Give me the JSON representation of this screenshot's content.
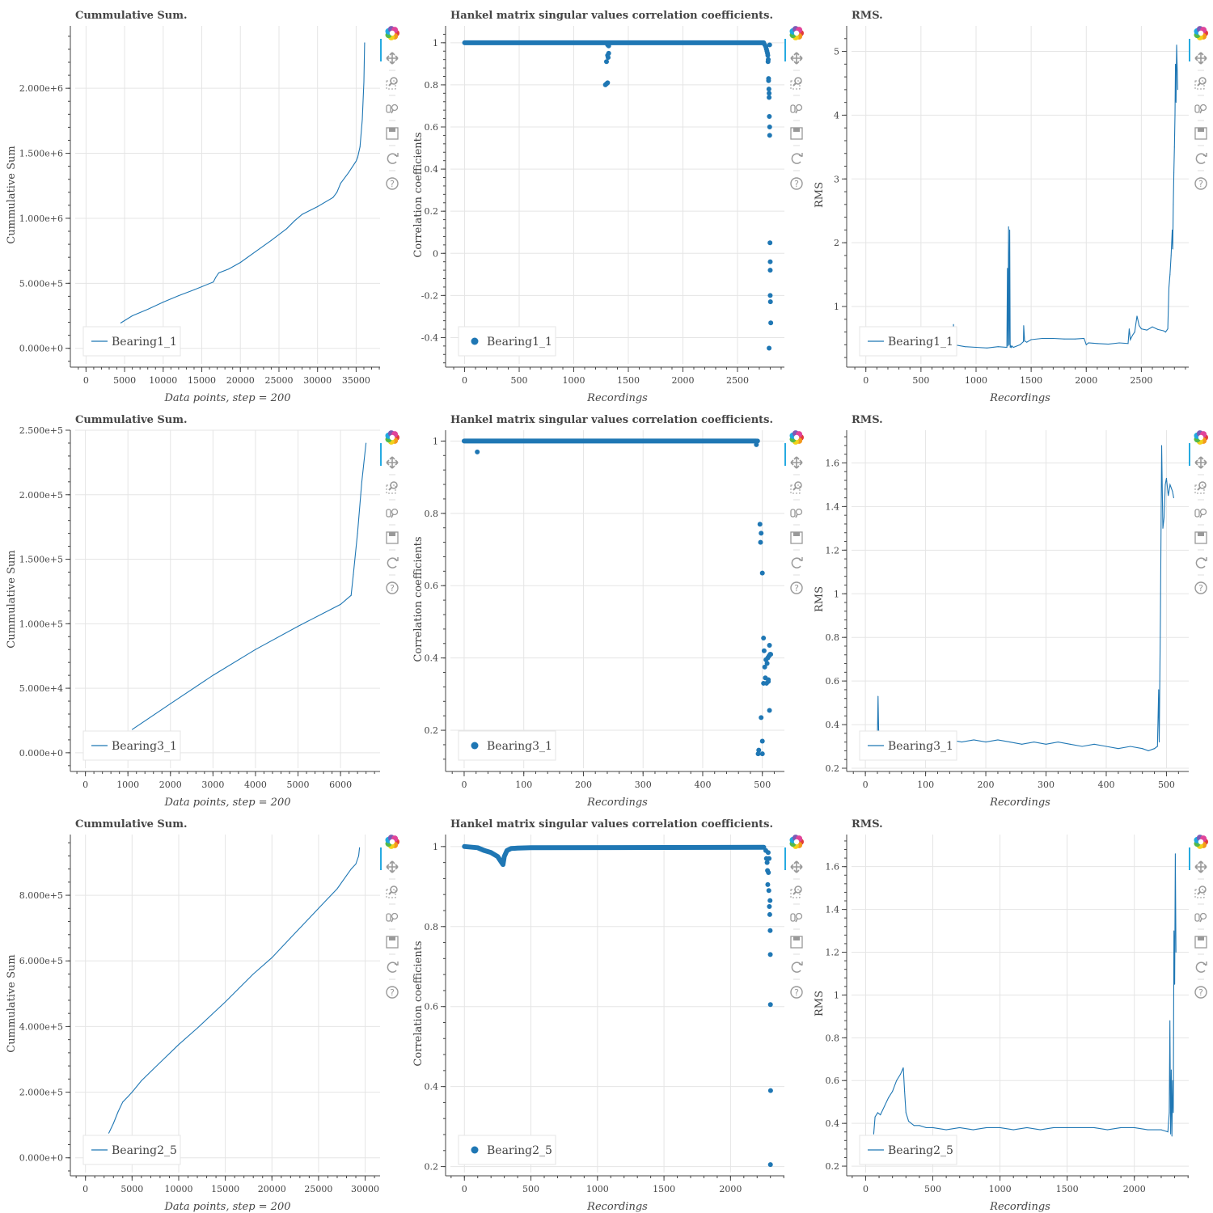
{
  "colors": {
    "line": "#1f77b4",
    "grid": "#e5e5e5",
    "axis": "#444444",
    "title": "#444444"
  },
  "toolbar": {
    "tools": [
      {
        "name": "bokeh-logo",
        "icon": "bokeh-logo-icon"
      },
      {
        "name": "pan-tool",
        "icon": "pan-icon"
      },
      {
        "name": "box-zoom-tool",
        "icon": "box-zoom-icon"
      },
      {
        "name": "wheel-zoom-tool",
        "icon": "wheel-zoom-icon"
      },
      {
        "name": "save-tool",
        "icon": "save-icon"
      },
      {
        "name": "reset-tool",
        "icon": "reset-icon"
      },
      {
        "name": "help-tool",
        "icon": "help-icon"
      }
    ]
  },
  "chart_data": [
    {
      "id": "b11-cumsum",
      "type": "line",
      "title": "Cummulative Sum.",
      "xlabel": "Data points, step = 200",
      "ylabel": "Cummulative Sum",
      "legend": "Bearing1_1",
      "xlim": [
        -1400,
        38100
      ],
      "ylim": [
        -120000,
        2480000
      ],
      "xticks": [
        0,
        5000,
        10000,
        15000,
        20000,
        25000,
        30000,
        35000
      ],
      "yticks": [
        0,
        500000,
        1000000,
        1500000,
        2000000
      ],
      "yticklabels": [
        "0.000e+0",
        "5.000e+5",
        "1.000e+6",
        "1.500e+6",
        "2.000e+6"
      ],
      "x": [
        4500,
        6000,
        8000,
        10000,
        12000,
        14000,
        16500,
        16800,
        17200,
        18500,
        20000,
        22000,
        24000,
        26000,
        27000,
        28000,
        30000,
        32000,
        32500,
        33000,
        34000,
        35000,
        35200,
        35500,
        35800,
        36000,
        36100
      ],
      "y": [
        195000,
        250000,
        300000,
        355000,
        405000,
        450000,
        510000,
        545000,
        580000,
        610000,
        660000,
        745000,
        830000,
        920000,
        980000,
        1030000,
        1090000,
        1160000,
        1200000,
        1270000,
        1350000,
        1440000,
        1470000,
        1550000,
        1760000,
        2050000,
        2350000
      ]
    },
    {
      "id": "b11-corr",
      "type": "scatter",
      "title": "Hankel matrix singular values correlation coefficients.",
      "xlabel": "Recordings",
      "ylabel": "Correlation coefficients",
      "legend": "Bearing1_1",
      "xlim": [
        -130,
        2930
      ],
      "ylim": [
        -0.525,
        1.08
      ],
      "xticks": [
        0,
        500,
        1000,
        1500,
        2000,
        2500
      ],
      "yticks": [
        -0.4,
        -0.2,
        0,
        0.2,
        0.4,
        0.6,
        0.8,
        1
      ],
      "yticklabels": [
        "-0.4",
        "-0.2",
        "0",
        "0.2",
        "0.4",
        "0.6",
        "0.8",
        "1"
      ],
      "band": {
        "from": 0,
        "to": 2740,
        "value": 1.0
      },
      "x": [
        1290,
        1300,
        1310,
        1315,
        1320,
        1300,
        1310,
        1320,
        1310,
        2750,
        2760,
        2765,
        2770,
        2775,
        2778,
        2780,
        2782,
        2785,
        2785,
        2788,
        2790,
        2790,
        2792,
        2795,
        2795,
        2798,
        2800,
        2800,
        2800,
        2802,
        2805,
        2790,
        2795
      ],
      "y": [
        0.8,
        0.805,
        0.81,
        0.93,
        0.95,
        0.91,
        0.94,
        0.985,
        0.99,
        0.99,
        0.98,
        0.97,
        0.96,
        0.95,
        0.94,
        0.91,
        0.92,
        0.83,
        0.82,
        0.78,
        0.76,
        0.74,
        0.65,
        0.6,
        0.56,
        0.05,
        -0.04,
        -0.08,
        -0.2,
        -0.23,
        -0.33,
        -0.45,
        0.99
      ]
    },
    {
      "id": "b11-rms",
      "type": "line",
      "title": "RMS.",
      "xlabel": "Recordings",
      "ylabel": "RMS",
      "legend": "Bearing1_1",
      "xlim": [
        -130,
        2930
      ],
      "ylim": [
        0.1,
        5.4
      ],
      "xticks": [
        0,
        500,
        1000,
        1500,
        2000,
        2500
      ],
      "yticks": [
        1,
        2,
        3,
        4,
        5
      ],
      "yticklabels": [
        "1",
        "2",
        "3",
        "4",
        "5"
      ],
      "x": [
        790,
        795,
        800,
        900,
        1000,
        1100,
        1200,
        1280,
        1285,
        1290,
        1295,
        1300,
        1305,
        1310,
        1315,
        1320,
        1325,
        1330,
        1340,
        1400,
        1430,
        1432,
        1440,
        1460,
        1500,
        1600,
        1700,
        1800,
        1900,
        1980,
        2000,
        2020,
        2100,
        2200,
        2300,
        2380,
        2390,
        2400,
        2420,
        2440,
        2460,
        2480,
        2500,
        2550,
        2600,
        2650,
        2700,
        2720,
        2740,
        2750,
        2760,
        2770,
        2780,
        2785,
        2790,
        2795,
        2800,
        2805,
        2810,
        2815,
        2820,
        2830
      ],
      "y": [
        0.5,
        0.72,
        0.4,
        0.37,
        0.36,
        0.35,
        0.37,
        0.36,
        1.6,
        0.38,
        2.25,
        0.4,
        2.2,
        0.36,
        0.38,
        0.36,
        0.38,
        0.37,
        0.36,
        0.4,
        0.45,
        0.7,
        0.46,
        0.44,
        0.48,
        0.5,
        0.5,
        0.49,
        0.49,
        0.5,
        0.4,
        0.43,
        0.42,
        0.41,
        0.43,
        0.42,
        0.65,
        0.48,
        0.55,
        0.6,
        0.85,
        0.7,
        0.65,
        0.63,
        0.68,
        0.64,
        0.62,
        0.6,
        0.65,
        1.3,
        1.5,
        1.8,
        2.2,
        1.9,
        2.6,
        3.1,
        3.5,
        4.0,
        4.8,
        4.2,
        5.1,
        4.4
      ]
    },
    {
      "id": "b31-cumsum",
      "type": "line",
      "title": "Cummulative Sum.",
      "xlabel": "Data points, step = 200",
      "ylabel": "Cummulative Sum",
      "legend": "Bearing3_1",
      "xlim": [
        -240,
        6930
      ],
      "ylim": [
        -12000,
        250000
      ],
      "xticks": [
        0,
        1000,
        2000,
        3000,
        4000,
        5000,
        6000
      ],
      "yticks": [
        0,
        50000,
        100000,
        150000,
        200000,
        250000
      ],
      "yticklabels": [
        "0.000e+0",
        "5.000e+4",
        "1.000e+5",
        "1.500e+5",
        "2.000e+5",
        "2.500e+5"
      ],
      "x": [
        1100,
        2000,
        3000,
        4000,
        5000,
        6000,
        6250,
        6300,
        6400,
        6500,
        6600
      ],
      "y": [
        18000,
        38000,
        60000,
        80000,
        98000,
        115000,
        122000,
        138000,
        170000,
        210000,
        240000
      ]
    },
    {
      "id": "b31-corr",
      "type": "scatter",
      "title": "Hankel matrix singular values correlation coefficients.",
      "xlabel": "Recordings",
      "ylabel": "Correlation coefficients",
      "legend": "Bearing3_1",
      "xlim": [
        -23,
        537
      ],
      "ylim": [
        0.095,
        1.03
      ],
      "xticks": [
        0,
        100,
        200,
        300,
        400,
        500
      ],
      "yticks": [
        0.2,
        0.4,
        0.6,
        0.8,
        1
      ],
      "yticklabels": [
        "0.2",
        "0.4",
        "0.6",
        "0.8",
        "1"
      ],
      "band": {
        "from": 0,
        "to": 490,
        "value": 1.0
      },
      "x": [
        22,
        490,
        492,
        494,
        496,
        497,
        498,
        500,
        500,
        502,
        503,
        504,
        505,
        506,
        507,
        508,
        509,
        510,
        510,
        511,
        512,
        512,
        513,
        514,
        493,
        498,
        500,
        502
      ],
      "y": [
        0.97,
        0.99,
        1.0,
        0.145,
        0.77,
        0.72,
        0.745,
        0.635,
        0.135,
        0.455,
        0.42,
        0.375,
        0.345,
        0.395,
        0.33,
        0.385,
        0.4,
        0.34,
        0.335,
        0.405,
        0.435,
        0.255,
        0.41,
        0.41,
        0.135,
        0.235,
        0.17,
        0.33
      ]
    },
    {
      "id": "b31-rms",
      "type": "line",
      "title": "RMS.",
      "xlabel": "Recordings",
      "ylabel": "RMS",
      "legend": "Bearing3_1",
      "xlim": [
        -23,
        537
      ],
      "ylim": [
        0.2,
        1.75
      ],
      "xticks": [
        0,
        100,
        200,
        300,
        400,
        500
      ],
      "yticks": [
        0.2,
        0.4,
        0.6,
        0.8,
        1,
        1.2,
        1.4,
        1.6
      ],
      "yticklabels": [
        "0.2",
        "0.4",
        "0.6",
        "0.8",
        "1",
        "1.2",
        "1.4",
        "1.6"
      ],
      "x": [
        20,
        21,
        22,
        23,
        24,
        40,
        60,
        80,
        100,
        120,
        140,
        160,
        180,
        200,
        220,
        240,
        260,
        280,
        300,
        320,
        340,
        360,
        380,
        400,
        420,
        440,
        460,
        470,
        480,
        485,
        487,
        488,
        490,
        492,
        494,
        496,
        498,
        500,
        503,
        506,
        510,
        512
      ],
      "y": [
        0.34,
        0.53,
        0.38,
        0.33,
        0.34,
        0.33,
        0.33,
        0.32,
        0.33,
        0.32,
        0.33,
        0.32,
        0.33,
        0.32,
        0.33,
        0.32,
        0.31,
        0.32,
        0.31,
        0.32,
        0.31,
        0.3,
        0.31,
        0.3,
        0.29,
        0.3,
        0.29,
        0.28,
        0.29,
        0.3,
        0.56,
        0.32,
        0.9,
        1.68,
        1.3,
        1.35,
        1.5,
        1.53,
        1.45,
        1.5,
        1.47,
        1.44
      ]
    },
    {
      "id": "b25-cumsum",
      "type": "line",
      "title": "Cummulative Sum.",
      "xlabel": "Data points, step = 200",
      "ylabel": "Cummulative Sum",
      "legend": "Bearing2_5",
      "xlim": [
        -1100,
        31600
      ],
      "ylim": [
        -45000,
        985000
      ],
      "xticks": [
        0,
        5000,
        10000,
        15000,
        20000,
        25000,
        30000
      ],
      "yticks": [
        0,
        200000,
        400000,
        600000,
        800000
      ],
      "yticklabels": [
        "0.000e+0",
        "2.000e+5",
        "4.000e+5",
        "6.000e+5",
        "8.000e+5"
      ],
      "x": [
        2500,
        3000,
        3500,
        4000,
        4500,
        5000,
        6000,
        8000,
        10000,
        12000,
        15000,
        18000,
        20000,
        22000,
        25000,
        27000,
        28000,
        28500,
        29000,
        29300,
        29400
      ],
      "y": [
        75000,
        105000,
        140000,
        170000,
        185000,
        200000,
        235000,
        290000,
        345000,
        395000,
        475000,
        560000,
        610000,
        670000,
        760000,
        820000,
        860000,
        880000,
        895000,
        920000,
        945000
      ]
    },
    {
      "id": "b25-corr",
      "type": "scatter",
      "title": "Hankel matrix singular values correlation coefficients.",
      "xlabel": "Recordings",
      "ylabel": "Correlation coefficients",
      "legend": "Bearing2_5",
      "xlim": [
        -105,
        2405
      ],
      "ylim": [
        0.185,
        1.03
      ],
      "xticks": [
        0,
        500,
        1000,
        1500,
        2000
      ],
      "yticks": [
        0.2,
        0.4,
        0.6,
        0.8,
        1
      ],
      "yticklabels": [
        "0.2",
        "0.4",
        "0.6",
        "0.8",
        "1"
      ],
      "curve": {
        "x": [
          0,
          100,
          150,
          200,
          250,
          270,
          290,
          300,
          320,
          350,
          400,
          500,
          2250
        ],
        "y": [
          1.0,
          0.997,
          0.99,
          0.985,
          0.975,
          0.965,
          0.955,
          0.975,
          0.99,
          0.995,
          0.996,
          0.997,
          0.998
        ]
      },
      "x": [
        2265,
        2270,
        2275,
        2278,
        2280,
        2283,
        2285,
        2288,
        2290,
        2292,
        2295,
        2297,
        2298,
        2299,
        2300,
        2301,
        2300
      ],
      "y": [
        0.99,
        0.97,
        0.96,
        0.94,
        0.905,
        0.985,
        0.935,
        0.89,
        0.97,
        0.85,
        0.83,
        0.865,
        0.79,
        0.73,
        0.605,
        0.39,
        0.205
      ]
    },
    {
      "id": "b25-rms",
      "type": "line",
      "title": "RMS.",
      "xlabel": "Recordings",
      "ylabel": "RMS",
      "legend": "Bearing2_5",
      "xlim": [
        -105,
        2405
      ],
      "ylim": [
        0.17,
        1.75
      ],
      "xticks": [
        0,
        500,
        1000,
        1500,
        2000
      ],
      "yticks": [
        0.2,
        0.4,
        0.6,
        0.8,
        1,
        1.2,
        1.4,
        1.6
      ],
      "yticklabels": [
        "0.2",
        "0.4",
        "0.6",
        "0.8",
        "1",
        "1.2",
        "1.4",
        "1.6"
      ],
      "x": [
        60,
        70,
        90,
        110,
        140,
        170,
        200,
        230,
        260,
        280,
        290,
        300,
        320,
        340,
        360,
        400,
        450,
        500,
        600,
        700,
        800,
        900,
        1000,
        1100,
        1200,
        1300,
        1400,
        1500,
        1600,
        1700,
        1800,
        1900,
        2000,
        2100,
        2200,
        2250,
        2260,
        2265,
        2270,
        2275,
        2280,
        2285,
        2290,
        2295,
        2300,
        2305,
        2310
      ],
      "y": [
        0.35,
        0.43,
        0.45,
        0.44,
        0.48,
        0.52,
        0.55,
        0.6,
        0.63,
        0.66,
        0.55,
        0.45,
        0.41,
        0.4,
        0.39,
        0.39,
        0.38,
        0.38,
        0.37,
        0.38,
        0.37,
        0.38,
        0.38,
        0.37,
        0.38,
        0.37,
        0.38,
        0.38,
        0.38,
        0.38,
        0.37,
        0.38,
        0.38,
        0.37,
        0.37,
        0.36,
        0.45,
        0.88,
        0.35,
        0.65,
        0.34,
        0.6,
        0.45,
        1.3,
        1.05,
        1.66,
        1.2
      ]
    }
  ]
}
